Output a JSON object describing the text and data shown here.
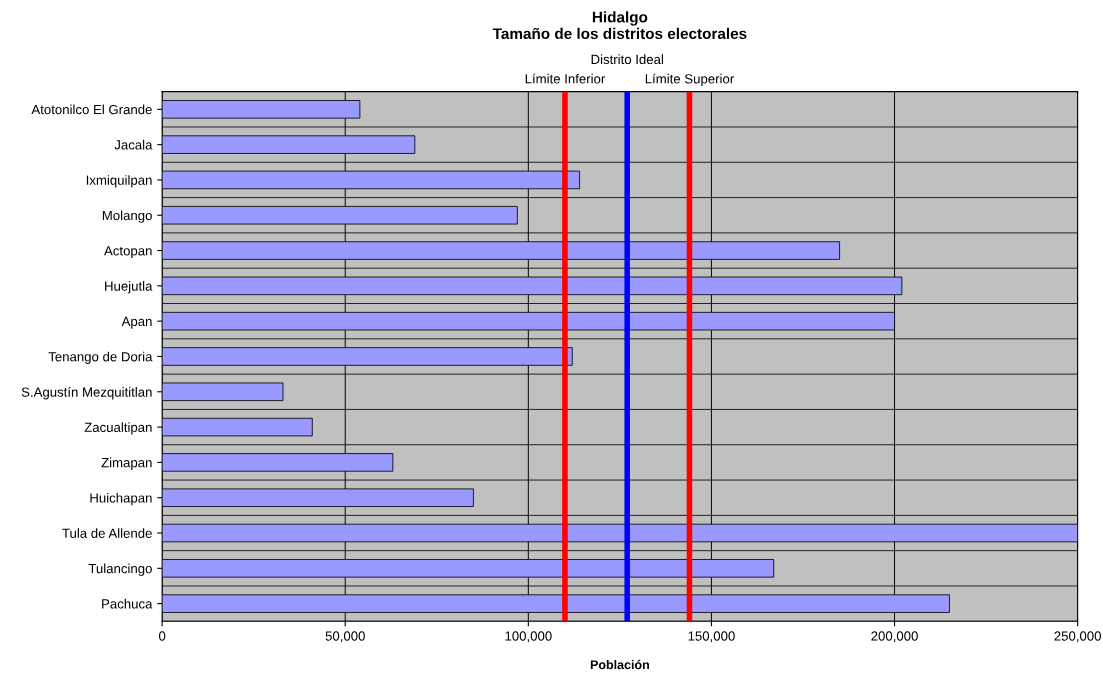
{
  "chart_data": {
    "type": "bar",
    "orientation": "horizontal",
    "title": "Hidalgo\nTamaño de los distritos electorales",
    "xlabel": "Población",
    "categories": [
      "Atotonilco El Grande",
      "Jacala",
      "Ixmiquilpan",
      "Molango",
      "Actopan",
      "Huejutla",
      "Apan",
      "Tenango de Doria",
      "S.Agustín Mezquititlan",
      "Zacualtipan",
      "Zimapan",
      "Huichapan",
      "Tula de Allende",
      "Tulancingo",
      "Pachuca"
    ],
    "values": [
      54000,
      69000,
      114000,
      97000,
      185000,
      202000,
      200000,
      112000,
      33000,
      41000,
      63000,
      85000,
      250000,
      167000,
      215000
    ],
    "color": "#9999ff",
    "xlim": [
      0,
      250000
    ],
    "xticks": [
      0,
      {
        "value": 50000,
        "label": "50,000"
      },
      {
        "value": 100000,
        "label": "100,000"
      },
      {
        "value": 150000,
        "label": "150,000"
      },
      {
        "value": 200000,
        "label": "200,000"
      },
      {
        "value": 250000,
        "label": "250,000"
      }
    ],
    "ref_lines": [
      {
        "axis": "x",
        "value": 110000,
        "label": "Límite Inferior",
        "color": "#ff0000"
      },
      {
        "axis": "x",
        "value": 127000,
        "label": "Distrito Ideal",
        "color": "#0000ff"
      },
      {
        "axis": "x",
        "value": 144000,
        "label": "Límite Superior",
        "color": "#ff0000"
      }
    ],
    "grid": "x",
    "legend": false
  }
}
